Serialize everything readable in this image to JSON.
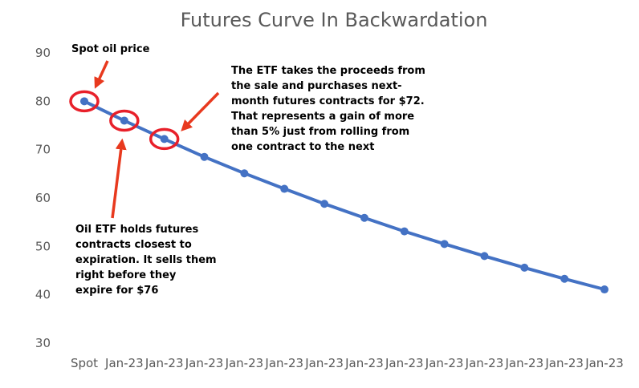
{
  "chart_data": {
    "type": "line",
    "title": "Futures Curve In Backwardation",
    "categories": [
      "Spot",
      "Jan-23",
      "Jan-23",
      "Jan-23",
      "Jan-23",
      "Jan-23",
      "Jan-23",
      "Jan-23",
      "Jan-23",
      "Jan-23",
      "Jan-23",
      "Jan-23",
      "Jan-23",
      "Jan-23"
    ],
    "series": [
      {
        "values": [
          80,
          76,
          72.2,
          68.5,
          65.1,
          61.9,
          58.8,
          55.9,
          53.1,
          50.5,
          48.0,
          45.6,
          43.3,
          41.1
        ]
      }
    ],
    "ylim": [
      30,
      90
    ],
    "yticks": [
      30,
      40,
      50,
      60,
      70,
      80,
      90
    ],
    "grid": false,
    "legend": "none",
    "highlighted_points": [
      0,
      1,
      2
    ],
    "annotations": {
      "spot": "Spot oil price",
      "roll": [
        "The ETF takes the proceeds from",
        "the sale and purchases next-",
        "month futures contracts for $72.",
        "That represents a gain of more",
        "than 5% just from rolling from",
        "one contract to the next"
      ],
      "hold": [
        "Oil ETF holds futures",
        "contracts closest to",
        "expiration. It sells them",
        "right before they",
        "expire for $76"
      ]
    }
  },
  "colors": {
    "line": "#4472C4",
    "highlight": "#E8202A",
    "arrow": "#E8391E",
    "text": "#595959"
  }
}
